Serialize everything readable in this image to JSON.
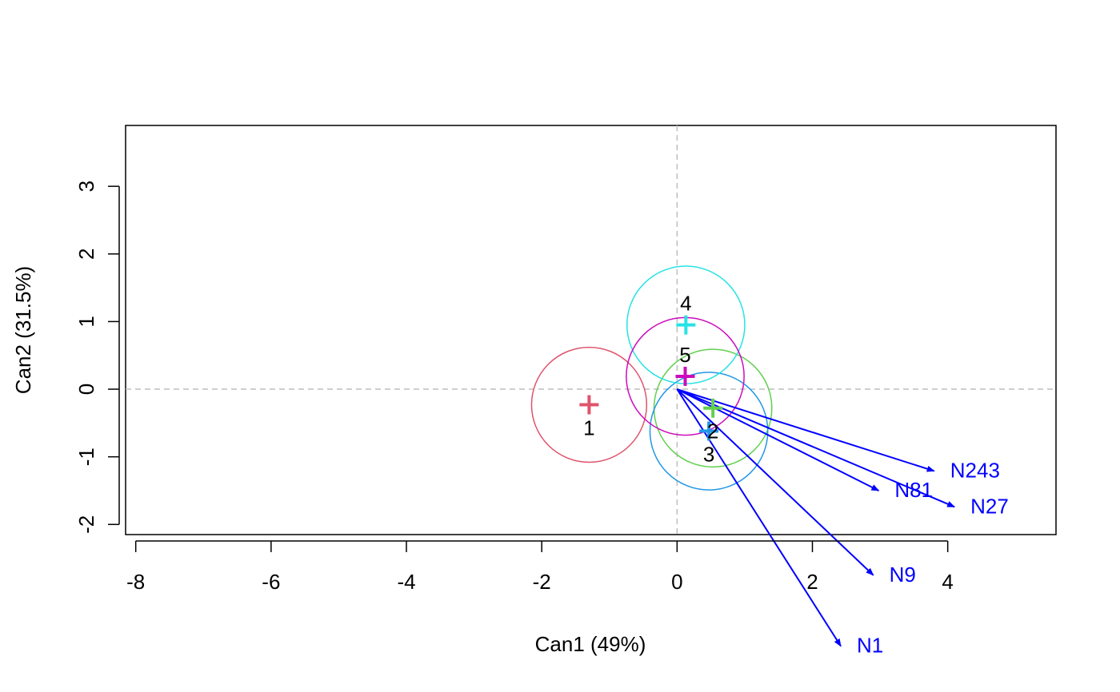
{
  "chart_data": {
    "type": "scatter",
    "title": "",
    "xlabel": "Can1 (49%)",
    "ylabel": "Can2 (31.5%)",
    "xlim": [
      -8.15,
      5.6
    ],
    "ylim": [
      -2.15,
      3.9
    ],
    "x_ticks": [
      -8,
      -6,
      -4,
      -2,
      0,
      2,
      4
    ],
    "y_ticks": [
      -2,
      -1,
      0,
      1,
      2,
      3
    ],
    "x_tick_labels": [
      "-8",
      "-6",
      "-4",
      "-2",
      "0",
      "2",
      "4"
    ],
    "y_tick_labels": [
      "-2",
      "-1",
      "0",
      "1",
      "2",
      "3"
    ],
    "grid": false,
    "reference_lines": {
      "x": 0,
      "y": 0,
      "style": "dashed",
      "color": "#bebebe"
    },
    "groups": [
      {
        "label": "1",
        "x": -1.3,
        "y": -0.23,
        "radius": 0.85,
        "color": "#DF536B"
      },
      {
        "label": "2",
        "x": 0.53,
        "y": -0.28,
        "radius": 0.87,
        "color": "#61D04F"
      },
      {
        "label": "3",
        "x": 0.47,
        "y": -0.62,
        "radius": 0.87,
        "color": "#2297E6"
      },
      {
        "label": "4",
        "x": 0.13,
        "y": 0.95,
        "radius": 0.87,
        "color": "#28E2E5"
      },
      {
        "label": "5",
        "x": 0.12,
        "y": 0.19,
        "radius": 0.87,
        "color": "#CD0BBC"
      }
    ],
    "vectors": [
      {
        "name": "N243",
        "x": 3.8,
        "y": -1.21
      },
      {
        "name": "N81",
        "x": 2.98,
        "y": -1.5
      },
      {
        "name": "N27",
        "x": 4.1,
        "y": -1.74
      },
      {
        "name": "N9",
        "x": 2.9,
        "y": -2.75
      },
      {
        "name": "N1",
        "x": 2.42,
        "y": -3.8
      }
    ],
    "vector_color": "#0000FF"
  }
}
